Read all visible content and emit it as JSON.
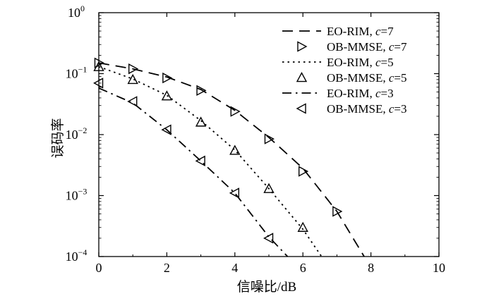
{
  "chart_data": {
    "type": "line",
    "xlabel": "信噪比/dB",
    "ylabel": "误码率",
    "xlim": [
      0,
      10
    ],
    "ylim": [
      0.0001,
      1
    ],
    "y_scale": "log",
    "grid": false,
    "legend_position": "top-right",
    "x_ticks": [
      "0",
      "2",
      "4",
      "6",
      "8",
      "10"
    ],
    "y_ticks": [
      {
        "base": "10",
        "exp": "0"
      },
      {
        "base": "10",
        "exp": "−1"
      },
      {
        "base": "10",
        "exp": "−2"
      },
      {
        "base": "10",
        "exp": "−3"
      },
      {
        "base": "10",
        "exp": "−4"
      }
    ],
    "series": [
      {
        "name": "EO-RIM, c=7",
        "label_main": "EO-RIM, ",
        "label_italic": "c",
        "label_tail": "=7",
        "style": "dash",
        "marker": "none",
        "x": [
          0,
          1,
          2,
          3,
          4,
          5,
          6,
          7,
          7.8
        ],
        "y": [
          0.15,
          0.12,
          0.088,
          0.055,
          0.025,
          0.009,
          0.0028,
          0.00055,
          0.0001
        ]
      },
      {
        "name": "OB-MMSE, c=7",
        "label_main": "OB-MMSE, ",
        "label_italic": "c",
        "label_tail": "=7",
        "style": "none",
        "marker": "triangle-right",
        "x": [
          0,
          1,
          2,
          3,
          4,
          5,
          6,
          7
        ],
        "y": [
          0.15,
          0.12,
          0.085,
          0.053,
          0.024,
          0.0085,
          0.0025,
          0.00055
        ]
      },
      {
        "name": "EO-RIM, c=5",
        "label_main": "EO-RIM, ",
        "label_italic": "c",
        "label_tail": "=5",
        "style": "dot",
        "marker": "none",
        "x": [
          0,
          1,
          2,
          3,
          4,
          5,
          6,
          6.55
        ],
        "y": [
          0.13,
          0.082,
          0.044,
          0.017,
          0.0056,
          0.0013,
          0.00028,
          0.0001
        ]
      },
      {
        "name": "OB-MMSE, c=5",
        "label_main": "OB-MMSE, ",
        "label_italic": "c",
        "label_tail": "=5",
        "style": "none",
        "marker": "triangle-up",
        "x": [
          0,
          1,
          2,
          3,
          4,
          5,
          6
        ],
        "y": [
          0.13,
          0.08,
          0.043,
          0.016,
          0.0055,
          0.0013,
          0.0003
        ]
      },
      {
        "name": "EO-RIM, c=3",
        "label_main": "EO-RIM, ",
        "label_italic": "c",
        "label_tail": "=3",
        "style": "dashdot",
        "marker": "none",
        "x": [
          0,
          1,
          2,
          3,
          4,
          5,
          5.55
        ],
        "y": [
          0.058,
          0.033,
          0.012,
          0.0037,
          0.0011,
          0.00021,
          0.0001
        ]
      },
      {
        "name": "OB-MMSE, c=3",
        "label_main": "OB-MMSE, ",
        "label_italic": "c",
        "label_tail": "=3",
        "style": "none",
        "marker": "triangle-left",
        "x": [
          0,
          1,
          2,
          3,
          4,
          5
        ],
        "y": [
          0.07,
          0.035,
          0.012,
          0.0037,
          0.0011,
          0.0002
        ]
      }
    ]
  }
}
